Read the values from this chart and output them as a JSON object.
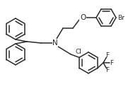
{
  "bg_color": "#ffffff",
  "line_color": "#2a2a2a",
  "line_width": 1.1,
  "text_color": "#2a2a2a",
  "font_size": 6.5,
  "figsize": [
    1.88,
    1.39
  ],
  "dpi": 100,
  "xlim": [
    0,
    188
  ],
  "ylim": [
    0,
    139
  ]
}
